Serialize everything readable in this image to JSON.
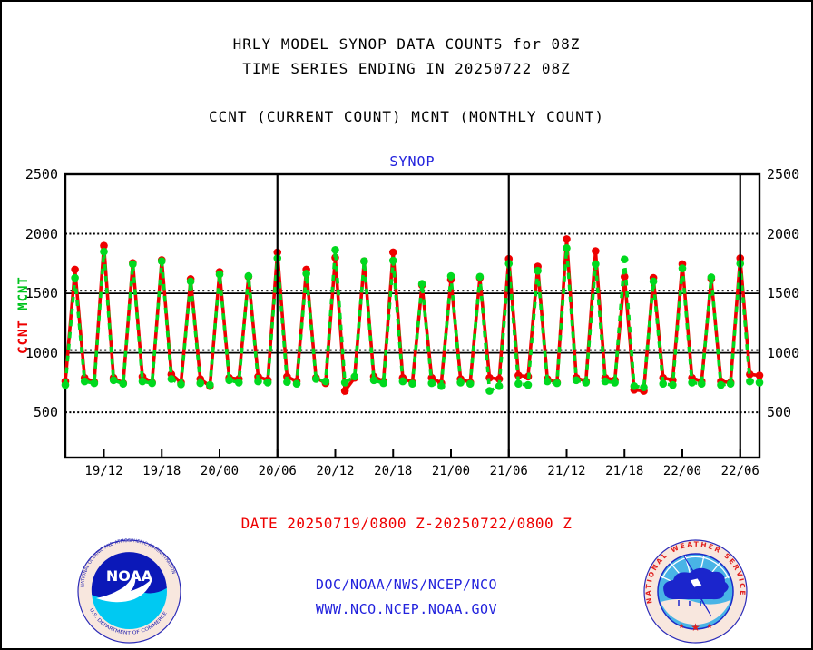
{
  "header": {
    "title_line1": "HRLY MODEL SYNOP DATA COUNTS for 08Z",
    "title_line2": "TIME SERIES ENDING IN 20250722 08Z",
    "legend_line": "CCNT (CURRENT COUNT) MCNT (MONTHLY COUNT)"
  },
  "plot": {
    "title": "SYNOP",
    "left_axis_label_green": "MCNT",
    "left_axis_label_red": "CCNT"
  },
  "footer": {
    "date_range": "DATE 20250719/0800 Z-20250722/0800 Z",
    "org": "DOC/NOAA/NWS/NCEP/NCO",
    "url": "WWW.NCO.NCEP.NOAA.GOV"
  },
  "logos": {
    "noaa": {
      "ring_top": "NATIONAL OCEANIC AND ATMOSPHERIC ADMINISTRATION",
      "ring_bottom": "U.S. DEPARTMENT OF COMMERCE",
      "center": "NOAA"
    },
    "nws": {
      "ring": "NATIONAL WEATHER SERVICE"
    }
  },
  "colors": {
    "series_red": "#ee0000",
    "series_green": "#00d91e",
    "text_blue": "#2222dd",
    "text_red": "#ee0000",
    "noaa_navy": "#0b18b8",
    "noaa_cyan": "#00c9f2",
    "logo_ring_pale": "#f8e7de",
    "nws_lightblue": "#49b4e6",
    "nws_cloud": "#1b25cc",
    "nws_red": "#e02020"
  },
  "chart_data": {
    "type": "line",
    "title": "SYNOP",
    "x_start": "19/08Z",
    "x_end": "22/08Z",
    "x_step_hours": 1,
    "n_points": 73,
    "x_tick_labels": [
      "19/12",
      "19/18",
      "20/00",
      "20/06",
      "20/12",
      "20/18",
      "21/00",
      "21/06",
      "21/12",
      "21/18",
      "22/00",
      "22/06"
    ],
    "x_tick_indices": [
      4,
      10,
      16,
      22,
      28,
      34,
      40,
      46,
      52,
      58,
      64,
      70
    ],
    "y_ticks": [
      500,
      1000,
      1500,
      2000,
      2500
    ],
    "ylim": [
      120,
      2500
    ],
    "grid": "horizontal-dotted",
    "dotted_gridlines": [
      500,
      1000,
      1500,
      2000
    ],
    "solid_gridlines": [
      1000,
      1500
    ],
    "vertical_line_indices": [
      22,
      46,
      70
    ],
    "series": [
      {
        "name": "CCNT",
        "color": "#ee0000",
        "style": "solid",
        "values": [
          760,
          1700,
          790,
          755,
          1900,
          790,
          745,
          1755,
          800,
          750,
          1780,
          820,
          750,
          1620,
          780,
          720,
          1680,
          790,
          780,
          1640,
          800,
          770,
          1845,
          800,
          760,
          1700,
          790,
          745,
          1800,
          680,
          790,
          1770,
          800,
          760,
          1845,
          790,
          750,
          1570,
          790,
          745,
          1615,
          780,
          750,
          1630,
          790,
          780,
          1790,
          810,
          800,
          1725,
          780,
          750,
          1955,
          790,
          760,
          1855,
          790,
          770,
          1640,
          690,
          680,
          1630,
          790,
          770,
          1745,
          790,
          760,
          1620,
          760,
          750,
          1795,
          820,
          810
        ]
      },
      {
        "name": "MCNT",
        "color": "#00d91e",
        "style": "dashed",
        "values": [
          730,
          1630,
          760,
          745,
          1850,
          770,
          740,
          1745,
          760,
          745,
          1770,
          780,
          735,
          1600,
          745,
          730,
          1660,
          770,
          750,
          1645,
          760,
          750,
          1795,
          755,
          740,
          1665,
          780,
          760,
          1865,
          750,
          800,
          1770,
          770,
          745,
          1775,
          760,
          740,
          1580,
          745,
          720,
          1645,
          750,
          740,
          1640,
          680,
          720,
          1750,
          740,
          730,
          1690,
          760,
          745,
          1880,
          770,
          750,
          1745,
          760,
          750,
          1785,
          720,
          710,
          1600,
          740,
          730,
          1710,
          750,
          740,
          1635,
          730,
          740,
          1750,
          760,
          750
        ]
      }
    ]
  }
}
